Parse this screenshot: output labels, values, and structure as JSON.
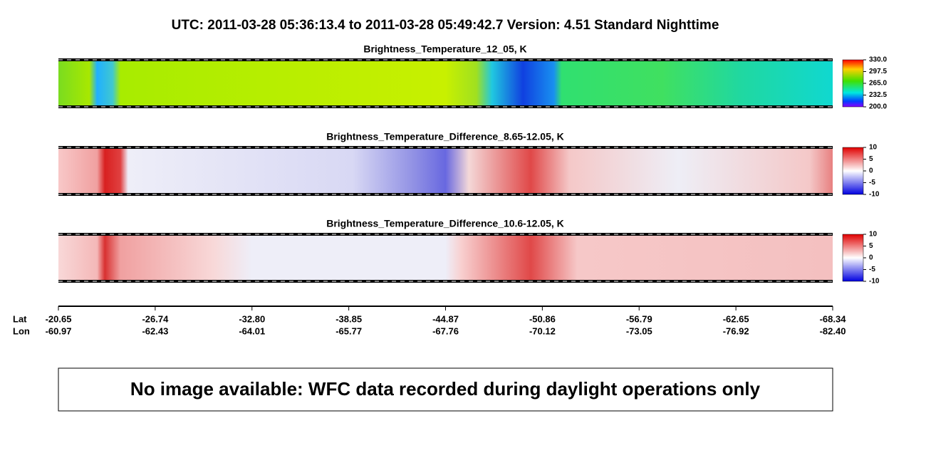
{
  "header": {
    "title": "UTC:  2011-03-28   05:36:13.4  to  2011-03-28   05:49:42.7    Version: 4.51  Standard Nighttime"
  },
  "panels": [
    {
      "title": "Brightness_Temperature_12_05, K",
      "colorbar": {
        "ticks": [
          {
            "value": 330,
            "label": "330.0"
          },
          {
            "value": 297.5,
            "label": "297.5"
          },
          {
            "value": 265,
            "label": "265.0"
          },
          {
            "value": 232.5,
            "label": "232.5"
          },
          {
            "value": 200,
            "label": "200.0"
          }
        ]
      }
    },
    {
      "title": "Brightness_Temperature_Difference_8.65-12.05, K",
      "colorbar": {
        "ticks": [
          10,
          5,
          0,
          -5,
          -10
        ]
      }
    },
    {
      "title": "Brightness_Temperature_Difference_10.6-12.05, K",
      "colorbar": {
        "ticks": [
          10,
          5,
          0,
          -5,
          -10
        ]
      }
    }
  ],
  "axis": {
    "lat_label": "Lat",
    "lon_label": "Lon",
    "lat": [
      -20.65,
      -26.74,
      -32.8,
      -38.85,
      -44.87,
      -50.86,
      -56.79,
      -62.65,
      -68.34
    ],
    "lon": [
      -60.97,
      -62.43,
      -64.01,
      -65.77,
      -67.76,
      -70.12,
      -73.05,
      -76.92,
      {
        "value": -82.4,
        "label": "-82.40"
      }
    ]
  },
  "notice": "No image available: WFC data recorded during daylight operations only"
}
